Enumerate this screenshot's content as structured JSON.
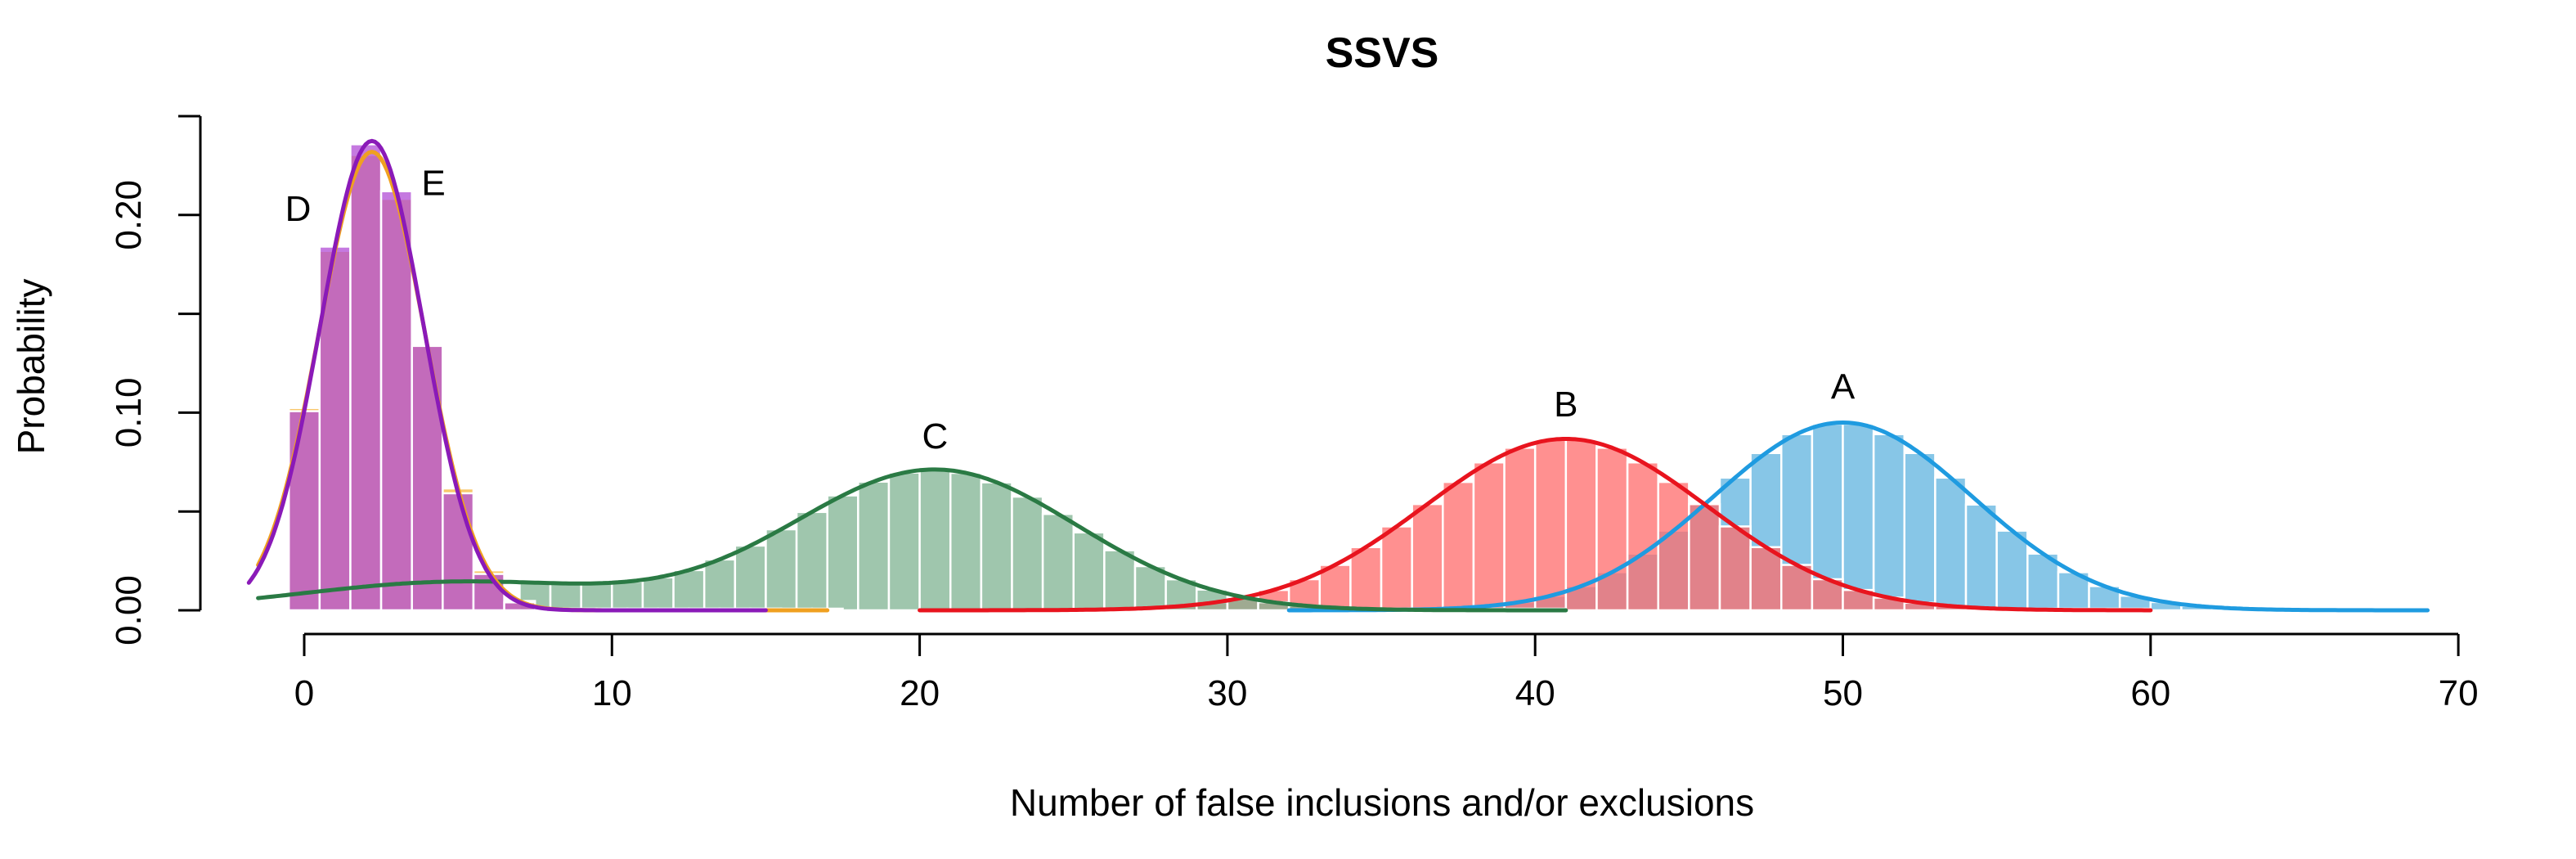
{
  "chart_data": {
    "type": "histogram-density",
    "title": "SSVS",
    "xlabel": "Number of false inclusions and/or exclusions",
    "ylabel": "Probability",
    "xlim": [
      -2,
      70
    ],
    "ylim": [
      0,
      0.25
    ],
    "x_ticks": [
      0,
      10,
      20,
      30,
      40,
      50,
      60,
      70
    ],
    "x_tick_labels": [
      "0",
      "10",
      "20",
      "30",
      "40",
      "50",
      "60",
      "70"
    ],
    "y_ticks": [
      0,
      0.05,
      0.1,
      0.15,
      0.2,
      0.25
    ],
    "y_tick_labels": [
      "0.00",
      "",
      "0.10",
      "",
      "0.20",
      ""
    ],
    "grid": false,
    "legend": "none",
    "series": [
      {
        "label": "A",
        "label_at": [
          50,
          0.107
        ],
        "color": "#1f9be0",
        "fill": "#5fb3df",
        "hist_range": [
          32,
          69
        ],
        "components": [
          [
            1.0,
            50,
            4.2
          ]
        ],
        "support": [
          32,
          69
        ]
      },
      {
        "label": "B",
        "label_at": [
          41,
          0.098
        ],
        "color": "#e8141e",
        "fill": "#ff6b6b",
        "hist_range": [
          20,
          60
        ],
        "components": [
          [
            1.0,
            41,
            4.6
          ]
        ],
        "support": [
          20,
          60
        ]
      },
      {
        "label": "C",
        "label_at": [
          20.5,
          0.082
        ],
        "color": "#2a7a44",
        "fill": "#7fb392",
        "hist_range": [
          7,
          41
        ],
        "components": [
          [
            0.82,
            20.5,
            4.6
          ],
          [
            0.18,
            5,
            5
          ]
        ],
        "support": [
          -1.5,
          41
        ]
      },
      {
        "label": "D",
        "label_at": [
          -0.2,
          0.197
        ],
        "color": "#f0a020",
        "fill": "#f5b63a",
        "hist_range": [
          -0.5,
          17
        ],
        "components": [
          [
            1.0,
            2.2,
            1.72
          ]
        ],
        "support": [
          -1.5,
          17
        ]
      },
      {
        "label": "E",
        "label_at": [
          4.2,
          0.21
        ],
        "color": "#8a1ab8",
        "fill": "#b24cd6",
        "hist_range": [
          -0.5,
          15
        ],
        "components": [
          [
            1.0,
            2.2,
            1.68
          ]
        ],
        "support": [
          -1.8,
          15
        ]
      }
    ]
  }
}
